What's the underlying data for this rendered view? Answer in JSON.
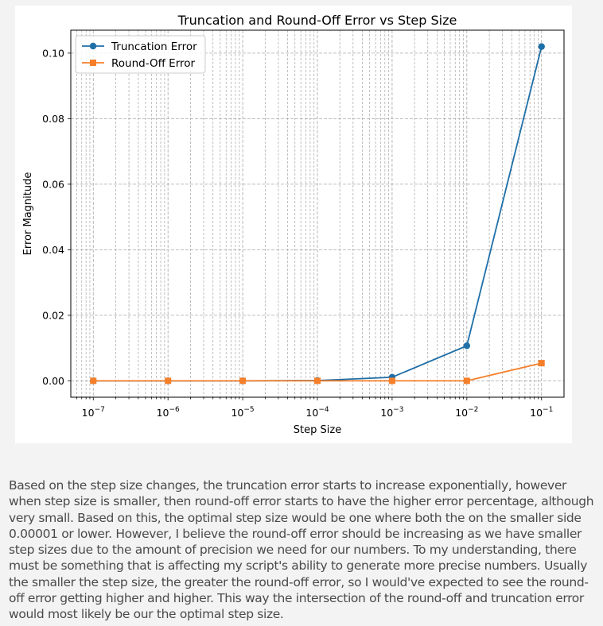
{
  "chart_data": {
    "type": "line",
    "title": "Truncation and Round-Off Error vs Step Size",
    "xlabel": "Step Size",
    "ylabel": "Error Magnitude",
    "xscale": "log",
    "x": [
      1e-07,
      1e-06,
      1e-05,
      0.0001,
      0.001,
      0.01,
      0.1
    ],
    "xlim": [
      5e-08,
      0.2
    ],
    "ylim": [
      -0.005,
      0.107
    ],
    "xticks": [
      {
        "value": 1e-07,
        "base": "10",
        "exp": "−7"
      },
      {
        "value": 1e-06,
        "base": "10",
        "exp": "−6"
      },
      {
        "value": 1e-05,
        "base": "10",
        "exp": "−5"
      },
      {
        "value": 0.0001,
        "base": "10",
        "exp": "−4"
      },
      {
        "value": 0.001,
        "base": "10",
        "exp": "−3"
      },
      {
        "value": 0.01,
        "base": "10",
        "exp": "−2"
      },
      {
        "value": 0.1,
        "base": "10",
        "exp": "−1"
      }
    ],
    "yticks": [
      {
        "value": 0.0,
        "label": "0.00"
      },
      {
        "value": 0.02,
        "label": "0.02"
      },
      {
        "value": 0.04,
        "label": "0.04"
      },
      {
        "value": 0.06,
        "label": "0.06"
      },
      {
        "value": 0.08,
        "label": "0.08"
      },
      {
        "value": 0.1,
        "label": "0.10"
      }
    ],
    "grid": true,
    "grid_minor": true,
    "legend_position": "top-left",
    "series": [
      {
        "name": "Truncation Error",
        "color": "#1f6fa8",
        "marker": "circle",
        "values": [
          0.0,
          0.0,
          0.0,
          0.0001,
          0.0011,
          0.0107,
          0.102
        ]
      },
      {
        "name": "Round-Off Error",
        "color": "#f57f2a",
        "marker": "square",
        "values": [
          0.0,
          0.0,
          0.0,
          0.0,
          0.0,
          0.0,
          0.0054
        ]
      }
    ]
  },
  "text": {
    "paragraph": "Based on the step size changes, the truncation error starts to increase exponentially, however when step size is smaller, then round-off error starts to have the higher error percentage, although very small. Based on this, the optimal step size would be one where both the on the smaller side 0.00001 or lower. However, I believe the round-off error should be increasing as we have smaller step sizes due to the amount of precision we need for our numbers. To my understanding, there must be something that is affecting my script's ability to generate more precise numbers. Usually the smaller the step size, the greater the round-off error, so I would've expected to see the round-off error getting higher and higher. This way the intersection of the round-off and truncation error would most likely be our the optimal step size."
  }
}
